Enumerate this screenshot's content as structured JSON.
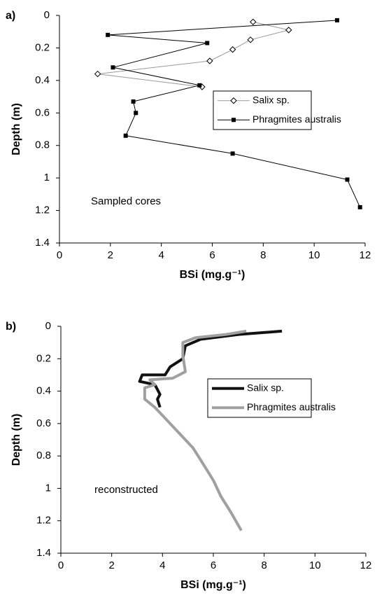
{
  "chart_data": [
    {
      "type": "line",
      "panel_label": "a)",
      "annotation": "Sampled cores",
      "xlabel": "BSi (mg.g⁻¹)",
      "ylabel": "Depth (m)",
      "xlim": [
        0,
        12
      ],
      "xticks": [
        0,
        2,
        4,
        6,
        8,
        10,
        12
      ],
      "ylim": [
        0,
        1.4
      ],
      "yticks": [
        0,
        0.2,
        0.4,
        0.6,
        0.8,
        1,
        1.2,
        1.4
      ],
      "y_inverted": true,
      "grid": false,
      "legend": "right",
      "series": [
        {
          "name": "Salix sp.",
          "color": "#999999",
          "marker": "diamond-open",
          "line_width": 1,
          "x": [
            7.6,
            9,
            7.5,
            6.8,
            5.9,
            1.5,
            5.6
          ],
          "values": [
            0.04,
            0.09,
            0.15,
            0.21,
            0.28,
            0.36,
            0.44
          ]
        },
        {
          "name": "Phragmites australis",
          "color": "#000000",
          "marker": "square",
          "line_width": 1,
          "x": [
            10.9,
            1.9,
            5.8,
            2.1,
            5.5,
            2.9,
            3,
            2.6,
            6.8,
            11.3,
            11.8
          ],
          "values": [
            0.03,
            0.12,
            0.17,
            0.32,
            0.43,
            0.53,
            0.6,
            0.74,
            0.85,
            1.01,
            1.18
          ]
        }
      ]
    },
    {
      "type": "line",
      "panel_label": "b)",
      "annotation": "reconstructed",
      "xlabel": "BSi (mg.g⁻¹)",
      "ylabel": "Depth (m)",
      "xlim": [
        0,
        12
      ],
      "xticks": [
        0,
        2,
        4,
        6,
        8,
        10,
        12
      ],
      "ylim": [
        0,
        1.4
      ],
      "yticks": [
        0,
        0.2,
        0.4,
        0.6,
        0.8,
        1,
        1.2,
        1.4
      ],
      "y_inverted": true,
      "grid": false,
      "legend": "right",
      "series": [
        {
          "name": "Salix sp.",
          "color": "#111111",
          "marker": "none",
          "line_width": 4,
          "x": [
            8.7,
            7,
            5.5,
            4.9,
            4.8,
            4.3,
            4.1,
            3.2,
            3.1,
            3.7,
            3.9,
            3.8,
            3.9
          ],
          "values": [
            0.03,
            0.05,
            0.08,
            0.12,
            0.2,
            0.25,
            0.3,
            0.3,
            0.34,
            0.36,
            0.42,
            0.45,
            0.5
          ]
        },
        {
          "name": "Phragmites australis",
          "color": "#a0a0a0",
          "marker": "none",
          "line_width": 4,
          "x": [
            7.3,
            6.5,
            5.3,
            4.8,
            4.8,
            4.9,
            4.4,
            3.5,
            3.7,
            3.3,
            3.3,
            3.7,
            4,
            4.6,
            5.2,
            5.6,
            6,
            6.3,
            6.7,
            7.1
          ],
          "values": [
            0.03,
            0.05,
            0.07,
            0.1,
            0.18,
            0.28,
            0.32,
            0.33,
            0.36,
            0.38,
            0.45,
            0.5,
            0.55,
            0.65,
            0.75,
            0.85,
            0.95,
            1.05,
            1.15,
            1.26
          ]
        }
      ]
    }
  ]
}
